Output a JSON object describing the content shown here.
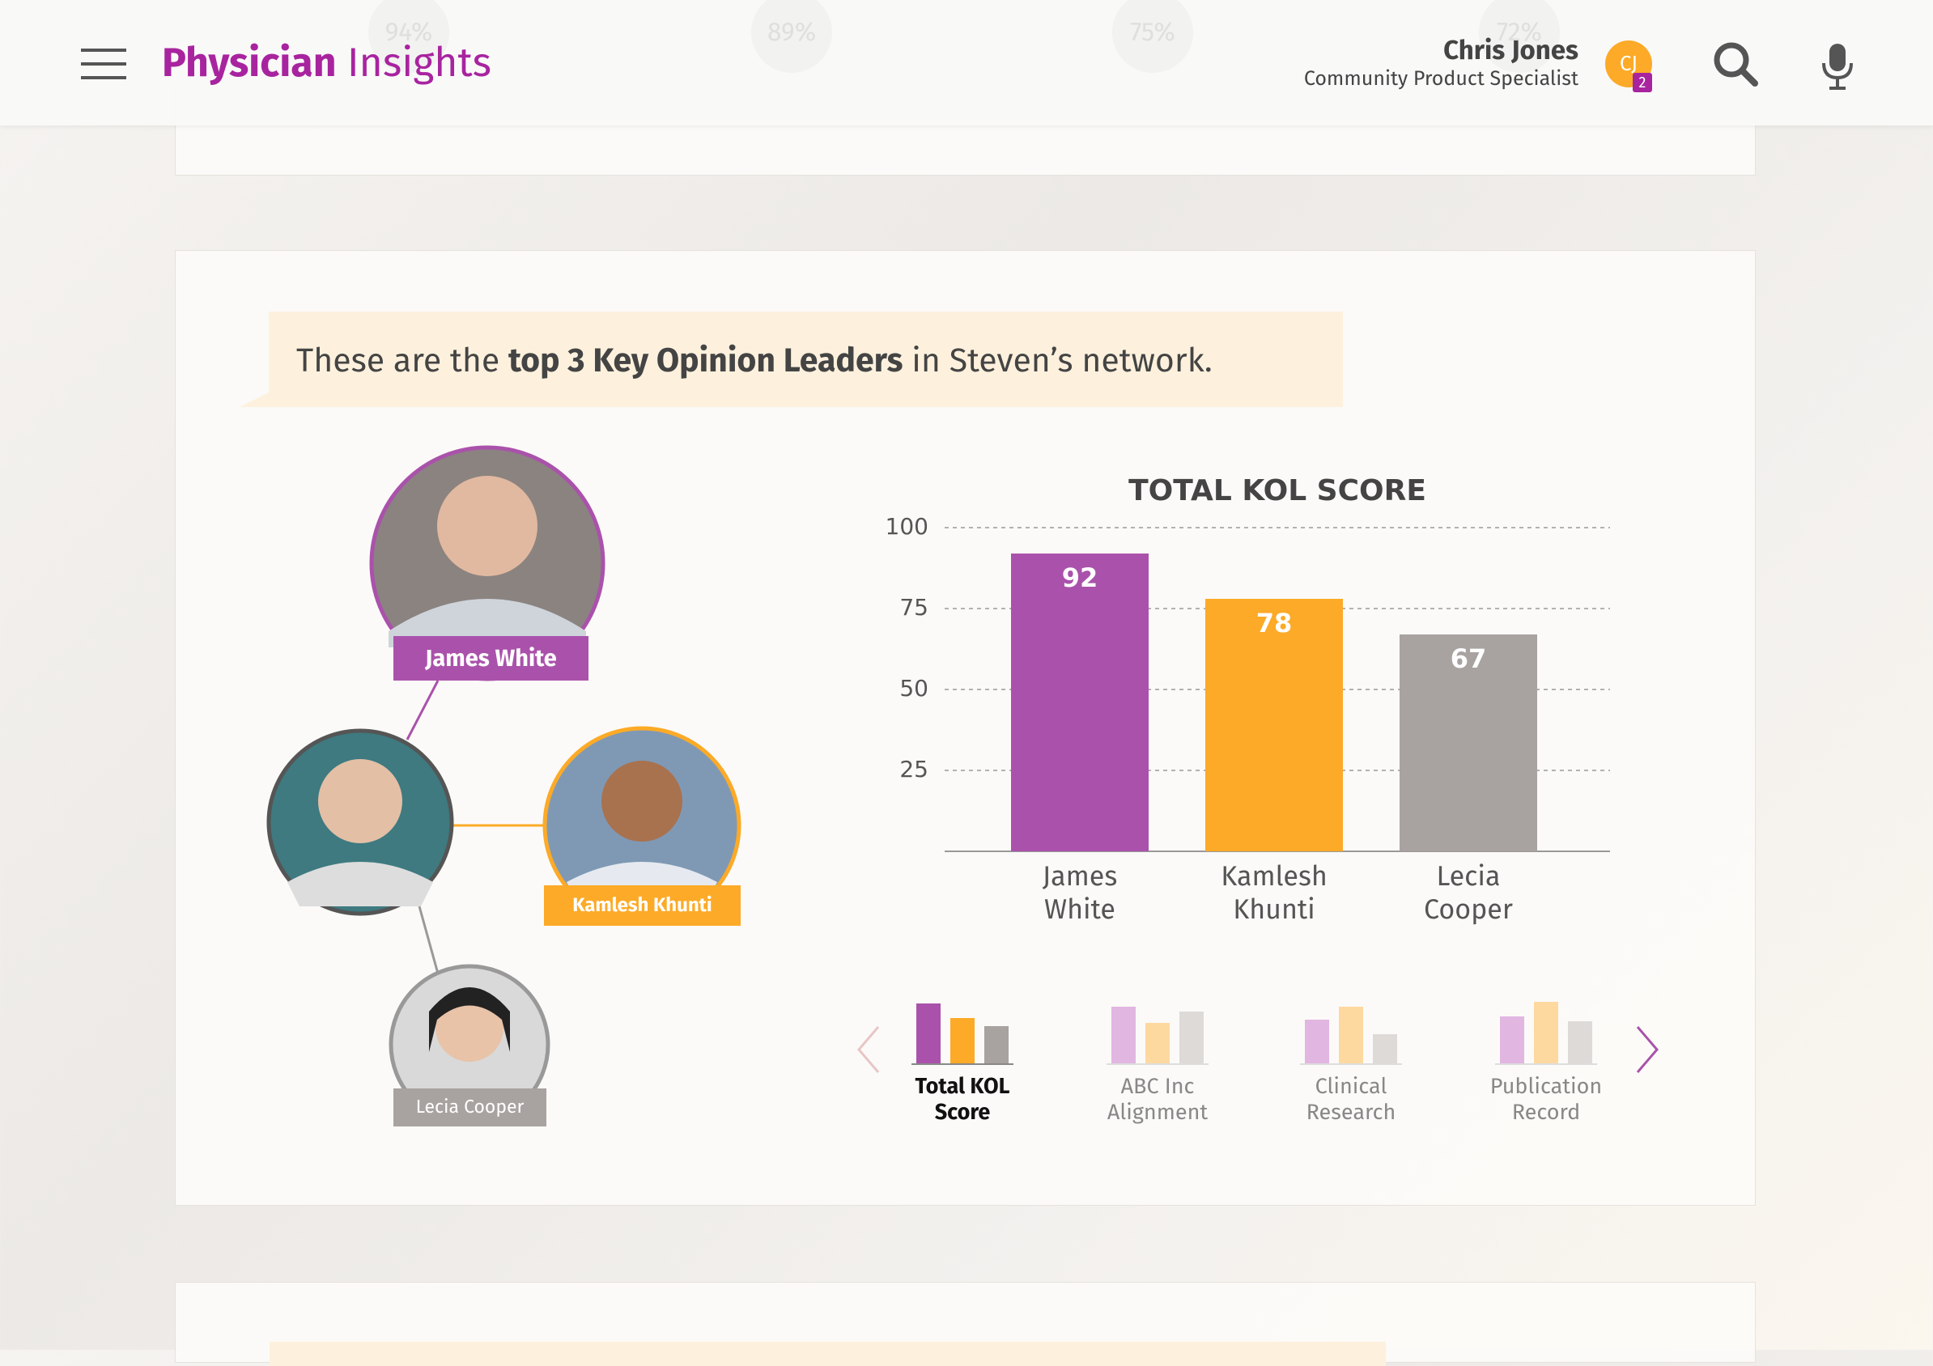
{
  "header": {
    "title_bold": "Physician",
    "title_light": "Insights",
    "user_name": "Chris Jones",
    "user_role": "Community Product Specialist",
    "avatar_initials": "CJ",
    "badge": "2"
  },
  "top_metrics": [
    "94%",
    "89%",
    "75%",
    "72%"
  ],
  "callout": {
    "before": "These are the ",
    "bold": "top 3 Key Opinion Leaders",
    "after": " in Steven’s network."
  },
  "network": [
    "James White",
    "Kamlesh Khunti",
    "Lecia Cooper"
  ],
  "chart_data": {
    "type": "bar",
    "title": "TOTAL KOL SCORE",
    "categories": [
      "James White",
      "Kamlesh Khunti",
      "Lecia Cooper"
    ],
    "values": [
      92,
      78,
      67
    ],
    "colors": [
      "#aa52ab",
      "#fcaa27",
      "#a8a2a0"
    ],
    "ylim": [
      0,
      100
    ],
    "yticks": [
      25,
      50,
      75,
      100
    ],
    "grid": true
  },
  "metric_tabs": [
    "Total KOL Score",
    "ABC Inc Alignment",
    "Clinical Research",
    "Publication Record"
  ]
}
